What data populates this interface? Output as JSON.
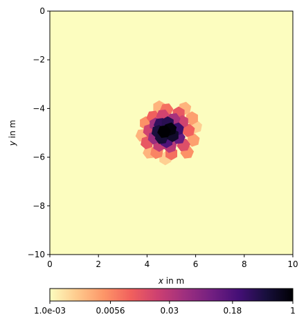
{
  "chart_data": {
    "type": "heatmap",
    "title": "",
    "xlabel_var": "x",
    "xlabel_unit": " in m",
    "ylabel_var": "y",
    "ylabel_unit": " in m",
    "xlim": [
      0,
      10
    ],
    "ylim": [
      -10,
      0
    ],
    "xticks": [
      0,
      2,
      4,
      6,
      8,
      10
    ],
    "xtick_labels": [
      "0",
      "2",
      "4",
      "6",
      "8",
      "10"
    ],
    "yticks": [
      0,
      -2,
      -4,
      -6,
      -8,
      -10
    ],
    "ytick_labels": [
      "0",
      "−2",
      "−4",
      "−6",
      "−8",
      "−10"
    ],
    "background_value": 0.001,
    "colorbar": {
      "scale": "log",
      "min": 0.001,
      "max": 1,
      "ticks": [
        0.001,
        0.0056,
        0.03,
        0.18,
        1
      ],
      "tick_labels": [
        "1.0e-03",
        "0.0056",
        "0.03",
        "0.18",
        "1"
      ],
      "colormap": [
        "#fcfdbf",
        "#feca8d",
        "#fd9668",
        "#f1605d",
        "#cd4071",
        "#9e2f7f",
        "#721f81",
        "#440f76",
        "#180f3d",
        "#000004"
      ]
    },
    "cells": [
      {
        "x": 4.7,
        "y": -4.95,
        "value": 1.0
      },
      {
        "x": 4.95,
        "y": -4.85,
        "value": 0.9
      },
      {
        "x": 5.05,
        "y": -5.1,
        "value": 0.6
      },
      {
        "x": 4.6,
        "y": -5.2,
        "value": 0.5
      },
      {
        "x": 4.45,
        "y": -4.95,
        "value": 0.45
      },
      {
        "x": 4.85,
        "y": -4.6,
        "value": 0.35
      },
      {
        "x": 4.55,
        "y": -4.65,
        "value": 0.3
      },
      {
        "x": 5.25,
        "y": -4.85,
        "value": 0.25
      },
      {
        "x": 4.8,
        "y": -5.35,
        "value": 0.18
      },
      {
        "x": 5.3,
        "y": -5.2,
        "value": 0.12
      },
      {
        "x": 4.3,
        "y": -5.2,
        "value": 0.05
      },
      {
        "x": 4.35,
        "y": -4.65,
        "value": 0.045
      },
      {
        "x": 5.1,
        "y": -4.45,
        "value": 0.04
      },
      {
        "x": 5.45,
        "y": -4.55,
        "value": 0.02
      },
      {
        "x": 4.95,
        "y": -5.55,
        "value": 0.03
      },
      {
        "x": 4.5,
        "y": -5.5,
        "value": 0.025
      },
      {
        "x": 5.5,
        "y": -5.5,
        "value": 0.015
      },
      {
        "x": 4.1,
        "y": -4.9,
        "value": 0.02
      },
      {
        "x": 4.65,
        "y": -4.3,
        "value": 0.02
      },
      {
        "x": 5.3,
        "y": -4.2,
        "value": 0.012
      },
      {
        "x": 5.7,
        "y": -4.9,
        "value": 0.01
      },
      {
        "x": 4.0,
        "y": -5.4,
        "value": 0.012
      },
      {
        "x": 4.25,
        "y": -4.35,
        "value": 0.01
      },
      {
        "x": 4.8,
        "y": -4.05,
        "value": 0.008
      },
      {
        "x": 5.0,
        "y": -5.85,
        "value": 0.008
      },
      {
        "x": 4.4,
        "y": -5.8,
        "value": 0.006
      },
      {
        "x": 5.65,
        "y": -5.8,
        "value": 0.005
      },
      {
        "x": 3.95,
        "y": -4.6,
        "value": 0.005
      },
      {
        "x": 5.85,
        "y": -4.4,
        "value": 0.004
      },
      {
        "x": 4.1,
        "y": -5.8,
        "value": 0.003
      },
      {
        "x": 5.9,
        "y": -5.3,
        "value": 0.004
      },
      {
        "x": 4.5,
        "y": -3.95,
        "value": 0.003
      },
      {
        "x": 5.55,
        "y": -4.0,
        "value": 0.003
      },
      {
        "x": 3.8,
        "y": -5.1,
        "value": 0.003
      },
      {
        "x": 4.75,
        "y": -6.05,
        "value": 0.002
      },
      {
        "x": 6.0,
        "y": -4.75,
        "value": 0.002
      }
    ]
  }
}
